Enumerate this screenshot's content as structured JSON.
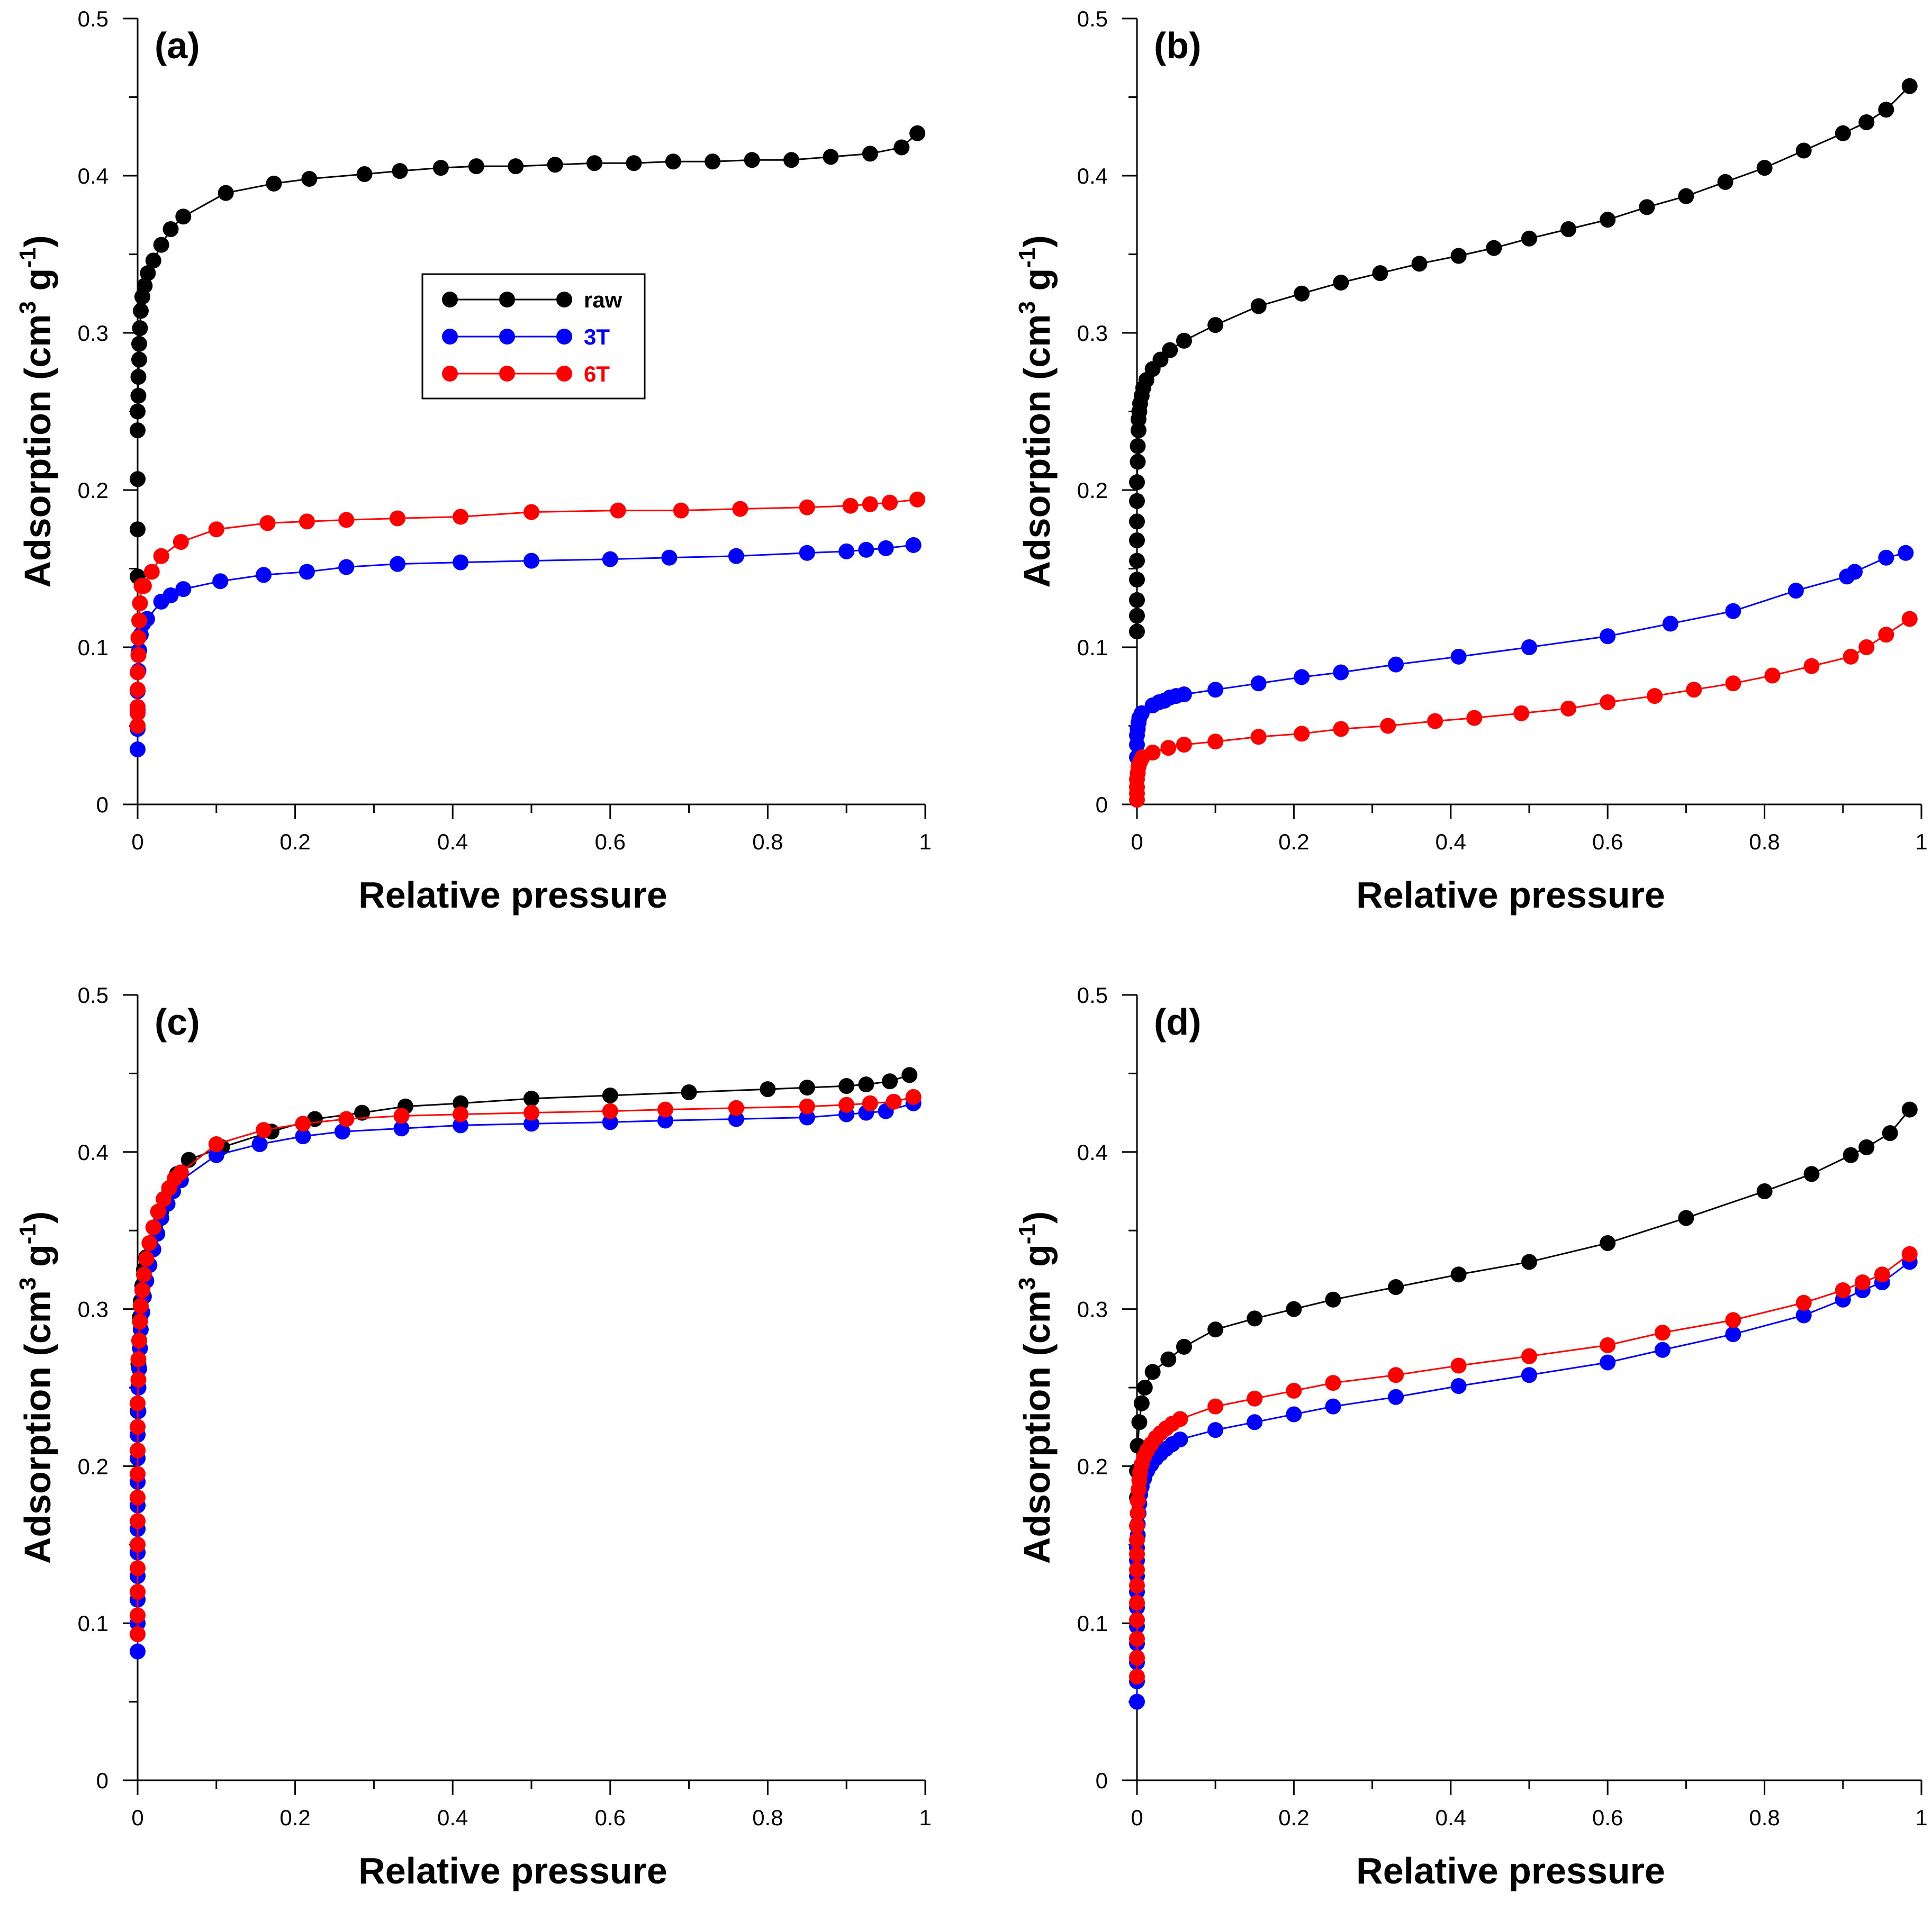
{
  "figure": {
    "panels_label": "Adsorption isotherms"
  },
  "chart_data": [
    {
      "type": "line",
      "panel_label": "(a)",
      "xlabel": "Relative pressure",
      "ylabel": "Adsorption (cm",
      "ylabel_sup1": "3",
      "ylabel_mid": " g",
      "ylabel_sup2": "-1",
      "ylabel_end": ")",
      "xlim": [
        0,
        1
      ],
      "ylim": [
        0,
        0.5
      ],
      "xticks": [
        "0",
        "0.2",
        "0.4",
        "0.6",
        "0.8",
        "1"
      ],
      "yticks": [
        "0",
        "0.1",
        "0.2",
        "0.3",
        "0.4",
        "0.5"
      ],
      "legend": {
        "position": "upper-center",
        "entries": [
          "raw",
          "3T",
          "6T"
        ]
      },
      "series": [
        {
          "name": "raw",
          "color": "#000000",
          "x": [
            0,
            0,
            0,
            0,
            0,
            0.001,
            0.001,
            0.002,
            0.002,
            0.003,
            0.004,
            0.006,
            0.009,
            0.013,
            0.02,
            0.03,
            0.042,
            0.058,
            0.112,
            0.173,
            0.218,
            0.288,
            0.333,
            0.385,
            0.43,
            0.48,
            0.53,
            0.58,
            0.63,
            0.68,
            0.73,
            0.78,
            0.83,
            0.88,
            0.93,
            0.97,
            0.99
          ],
          "y": [
            0.145,
            0.175,
            0.207,
            0.238,
            0.25,
            0.26,
            0.272,
            0.283,
            0.293,
            0.303,
            0.314,
            0.323,
            0.33,
            0.338,
            0.346,
            0.356,
            0.366,
            0.374,
            0.389,
            0.395,
            0.398,
            0.401,
            0.403,
            0.405,
            0.406,
            0.406,
            0.407,
            0.408,
            0.408,
            0.409,
            0.409,
            0.41,
            0.41,
            0.412,
            0.414,
            0.418,
            0.427
          ]
        },
        {
          "name": "3T",
          "color": "#0000ff",
          "x": [
            0,
            0,
            0,
            0,
            0.001,
            0.002,
            0.004,
            0.007,
            0.012,
            0.03,
            0.042,
            0.058,
            0.105,
            0.16,
            0.215,
            0.265,
            0.33,
            0.41,
            0.5,
            0.6,
            0.675,
            0.76,
            0.85,
            0.9,
            0.925,
            0.95,
            0.985
          ],
          "y": [
            0.035,
            0.048,
            0.06,
            0.072,
            0.085,
            0.098,
            0.108,
            0.115,
            0.118,
            0.129,
            0.133,
            0.137,
            0.142,
            0.146,
            0.148,
            0.151,
            0.153,
            0.154,
            0.155,
            0.156,
            0.157,
            0.158,
            0.16,
            0.161,
            0.162,
            0.163,
            0.165
          ]
        },
        {
          "name": "6T",
          "color": "#ff0000",
          "x": [
            0,
            0,
            0,
            0,
            0,
            0.001,
            0.001,
            0.002,
            0.003,
            0.005,
            0.008,
            0.018,
            0.03,
            0.055,
            0.1,
            0.165,
            0.215,
            0.265,
            0.33,
            0.41,
            0.5,
            0.61,
            0.69,
            0.765,
            0.85,
            0.905,
            0.93,
            0.955,
            0.99
          ],
          "y": [
            0.05,
            0.058,
            0.062,
            0.073,
            0.084,
            0.095,
            0.106,
            0.117,
            0.128,
            0.139,
            0.139,
            0.148,
            0.158,
            0.167,
            0.175,
            0.179,
            0.18,
            0.181,
            0.182,
            0.183,
            0.186,
            0.187,
            0.187,
            0.188,
            0.189,
            0.19,
            0.191,
            0.192,
            0.194
          ]
        }
      ]
    },
    {
      "type": "line",
      "panel_label": "(b)",
      "xlabel": "Relative pressure",
      "ylabel": "Adsorption (cm",
      "ylabel_sup1": "3",
      "ylabel_mid": " g",
      "ylabel_sup2": "-1",
      "ylabel_end": ")",
      "xlim": [
        0,
        1
      ],
      "ylim": [
        0,
        0.5
      ],
      "xticks": [
        "0",
        "0.2",
        "0.4",
        "0.6",
        "0.8",
        "1"
      ],
      "yticks": [
        "0",
        "0.1",
        "0.2",
        "0.3",
        "0.4",
        "0.5"
      ],
      "series": [
        {
          "name": "raw",
          "color": "#000000",
          "x": [
            0,
            0,
            0,
            0,
            0,
            0,
            0,
            0,
            0,
            0.001,
            0.001,
            0.002,
            0.002,
            0.003,
            0.004,
            0.006,
            0.008,
            0.012,
            0.02,
            0.03,
            0.042,
            0.06,
            0.1,
            0.155,
            0.21,
            0.26,
            0.31,
            0.36,
            0.41,
            0.455,
            0.5,
            0.55,
            0.6,
            0.65,
            0.7,
            0.75,
            0.8,
            0.85,
            0.9,
            0.93,
            0.955,
            0.985
          ],
          "y": [
            0.11,
            0.12,
            0.13,
            0.143,
            0.155,
            0.168,
            0.18,
            0.193,
            0.205,
            0.218,
            0.228,
            0.238,
            0.245,
            0.25,
            0.255,
            0.26,
            0.265,
            0.27,
            0.277,
            0.283,
            0.289,
            0.295,
            0.305,
            0.317,
            0.325,
            0.332,
            0.338,
            0.344,
            0.349,
            0.354,
            0.36,
            0.366,
            0.372,
            0.38,
            0.387,
            0.396,
            0.405,
            0.416,
            0.427,
            0.434,
            0.442,
            0.457
          ]
        },
        {
          "name": "3T",
          "color": "#0000ff",
          "x": [
            0,
            0,
            0,
            0.001,
            0.002,
            0.003,
            0.006,
            0.02,
            0.028,
            0.035,
            0.042,
            0.05,
            0.06,
            0.1,
            0.155,
            0.21,
            0.26,
            0.33,
            0.41,
            0.5,
            0.6,
            0.68,
            0.76,
            0.84,
            0.905,
            0.915,
            0.955,
            0.98
          ],
          "y": [
            0.03,
            0.038,
            0.044,
            0.048,
            0.052,
            0.055,
            0.058,
            0.063,
            0.065,
            0.066,
            0.068,
            0.069,
            0.07,
            0.073,
            0.077,
            0.081,
            0.084,
            0.089,
            0.094,
            0.1,
            0.107,
            0.115,
            0.123,
            0.136,
            0.145,
            0.148,
            0.157,
            0.16
          ]
        },
        {
          "name": "6T",
          "color": "#ff0000",
          "x": [
            0,
            0,
            0,
            0,
            0.001,
            0.002,
            0.004,
            0.007,
            0.02,
            0.04,
            0.06,
            0.1,
            0.155,
            0.21,
            0.26,
            0.32,
            0.38,
            0.43,
            0.49,
            0.55,
            0.6,
            0.66,
            0.71,
            0.76,
            0.81,
            0.86,
            0.91,
            0.93,
            0.955,
            0.985
          ],
          "y": [
            0.003,
            0.007,
            0.011,
            0.016,
            0.02,
            0.024,
            0.027,
            0.03,
            0.033,
            0.036,
            0.038,
            0.04,
            0.043,
            0.045,
            0.048,
            0.05,
            0.053,
            0.055,
            0.058,
            0.061,
            0.065,
            0.069,
            0.073,
            0.077,
            0.082,
            0.088,
            0.094,
            0.1,
            0.108,
            0.118
          ]
        }
      ]
    },
    {
      "type": "line",
      "panel_label": "(c)",
      "xlabel": "Relative pressure",
      "ylabel": "Adsorption (cm",
      "ylabel_sup1": "3",
      "ylabel_mid": " g",
      "ylabel_sup2": "-1",
      "ylabel_end": ")",
      "xlim": [
        0,
        1
      ],
      "ylim": [
        0,
        0.5
      ],
      "xticks": [
        "0",
        "0.2",
        "0.4",
        "0.6",
        "0.8",
        "1"
      ],
      "yticks": [
        "0",
        "0.1",
        "0.2",
        "0.3",
        "0.4",
        "0.5"
      ],
      "series": [
        {
          "name": "raw",
          "color": "#000000",
          "x": [
            0,
            0,
            0,
            0,
            0,
            0,
            0,
            0,
            0,
            0,
            0.001,
            0.001,
            0.002,
            0.003,
            0.004,
            0.006,
            0.008,
            0.011,
            0.016,
            0.022,
            0.03,
            0.04,
            0.05,
            0.065,
            0.107,
            0.17,
            0.225,
            0.285,
            0.34,
            0.41,
            0.5,
            0.6,
            0.7,
            0.8,
            0.85,
            0.9,
            0.925,
            0.955,
            0.98
          ],
          "y": [
            0.1,
            0.115,
            0.13,
            0.145,
            0.16,
            0.175,
            0.19,
            0.205,
            0.22,
            0.235,
            0.25,
            0.265,
            0.28,
            0.295,
            0.305,
            0.315,
            0.325,
            0.333,
            0.342,
            0.352,
            0.362,
            0.374,
            0.386,
            0.395,
            0.403,
            0.413,
            0.421,
            0.425,
            0.429,
            0.431,
            0.434,
            0.436,
            0.438,
            0.44,
            0.441,
            0.442,
            0.443,
            0.445,
            0.449
          ]
        },
        {
          "name": "3T",
          "color": "#0000ff",
          "x": [
            0,
            0,
            0,
            0,
            0,
            0,
            0,
            0,
            0,
            0,
            0.001,
            0.001,
            0.002,
            0.003,
            0.004,
            0.006,
            0.008,
            0.011,
            0.015,
            0.02,
            0.025,
            0.03,
            0.038,
            0.045,
            0.055,
            0.1,
            0.155,
            0.21,
            0.26,
            0.335,
            0.41,
            0.5,
            0.6,
            0.67,
            0.76,
            0.85,
            0.9,
            0.925,
            0.95,
            0.985
          ],
          "y": [
            0.082,
            0.1,
            0.115,
            0.13,
            0.145,
            0.16,
            0.175,
            0.19,
            0.205,
            0.22,
            0.235,
            0.25,
            0.262,
            0.275,
            0.287,
            0.298,
            0.308,
            0.318,
            0.328,
            0.338,
            0.348,
            0.358,
            0.367,
            0.375,
            0.382,
            0.398,
            0.405,
            0.41,
            0.413,
            0.415,
            0.417,
            0.418,
            0.419,
            0.42,
            0.421,
            0.422,
            0.424,
            0.425,
            0.426,
            0.431
          ]
        },
        {
          "name": "6T",
          "color": "#ff0000",
          "x": [
            0,
            0,
            0,
            0,
            0,
            0,
            0,
            0,
            0,
            0,
            0,
            0.001,
            0.001,
            0.002,
            0.003,
            0.004,
            0.006,
            0.008,
            0.011,
            0.015,
            0.02,
            0.026,
            0.033,
            0.04,
            0.047,
            0.055,
            0.1,
            0.16,
            0.21,
            0.265,
            0.335,
            0.41,
            0.5,
            0.6,
            0.67,
            0.76,
            0.85,
            0.9,
            0.93,
            0.96,
            0.985
          ],
          "y": [
            0.093,
            0.105,
            0.12,
            0.135,
            0.15,
            0.165,
            0.18,
            0.195,
            0.21,
            0.225,
            0.24,
            0.255,
            0.268,
            0.28,
            0.292,
            0.302,
            0.312,
            0.322,
            0.332,
            0.342,
            0.352,
            0.362,
            0.37,
            0.377,
            0.383,
            0.387,
            0.405,
            0.414,
            0.418,
            0.421,
            0.423,
            0.424,
            0.425,
            0.426,
            0.427,
            0.428,
            0.429,
            0.43,
            0.431,
            0.432,
            0.435
          ]
        }
      ]
    },
    {
      "type": "line",
      "panel_label": "(d)",
      "xlabel": "Relative pressure",
      "ylabel": "Adsorption (cm",
      "ylabel_sup1": "3",
      "ylabel_mid": " g",
      "ylabel_sup2": "-1",
      "ylabel_end": ")",
      "xlim": [
        0,
        1
      ],
      "ylim": [
        0,
        0.5
      ],
      "xticks": [
        "0",
        "0.2",
        "0.4",
        "0.6",
        "0.8",
        "1"
      ],
      "yticks": [
        "0",
        "0.1",
        "0.2",
        "0.3",
        "0.4",
        "0.5"
      ],
      "series": [
        {
          "name": "raw",
          "color": "#000000",
          "x": [
            0,
            0,
            0.001,
            0.003,
            0.006,
            0.01,
            0.02,
            0.04,
            0.06,
            0.1,
            0.15,
            0.2,
            0.25,
            0.33,
            0.41,
            0.5,
            0.6,
            0.7,
            0.8,
            0.86,
            0.91,
            0.93,
            0.96,
            0.985
          ],
          "y": [
            0.18,
            0.197,
            0.213,
            0.228,
            0.24,
            0.25,
            0.26,
            0.268,
            0.276,
            0.287,
            0.294,
            0.3,
            0.306,
            0.314,
            0.322,
            0.33,
            0.342,
            0.358,
            0.375,
            0.386,
            0.398,
            0.403,
            0.412,
            0.427
          ]
        },
        {
          "name": "3T",
          "color": "#0000ff",
          "x": [
            0,
            0,
            0,
            0,
            0,
            0,
            0,
            0,
            0,
            0,
            0.001,
            0.001,
            0.002,
            0.003,
            0.004,
            0.006,
            0.009,
            0.013,
            0.018,
            0.024,
            0.03,
            0.037,
            0.045,
            0.055,
            0.1,
            0.15,
            0.2,
            0.25,
            0.33,
            0.41,
            0.5,
            0.6,
            0.67,
            0.76,
            0.85,
            0.9,
            0.925,
            0.95,
            0.985
          ],
          "y": [
            0.05,
            0.063,
            0.075,
            0.087,
            0.098,
            0.11,
            0.12,
            0.13,
            0.14,
            0.148,
            0.156,
            0.163,
            0.17,
            0.176,
            0.182,
            0.187,
            0.192,
            0.197,
            0.201,
            0.205,
            0.208,
            0.211,
            0.214,
            0.217,
            0.223,
            0.228,
            0.233,
            0.238,
            0.244,
            0.251,
            0.258,
            0.266,
            0.274,
            0.284,
            0.296,
            0.306,
            0.312,
            0.317,
            0.33
          ]
        },
        {
          "name": "6T",
          "color": "#ff0000",
          "x": [
            0,
            0,
            0,
            0,
            0,
            0,
            0,
            0,
            0,
            0,
            0.001,
            0.001,
            0.002,
            0.003,
            0.004,
            0.006,
            0.009,
            0.013,
            0.018,
            0.024,
            0.03,
            0.037,
            0.045,
            0.055,
            0.1,
            0.15,
            0.2,
            0.25,
            0.33,
            0.41,
            0.5,
            0.6,
            0.67,
            0.76,
            0.85,
            0.9,
            0.925,
            0.95,
            0.985
          ],
          "y": [
            0.066,
            0.078,
            0.09,
            0.102,
            0.113,
            0.124,
            0.134,
            0.144,
            0.153,
            0.162,
            0.17,
            0.178,
            0.185,
            0.191,
            0.196,
            0.201,
            0.206,
            0.21,
            0.214,
            0.218,
            0.221,
            0.224,
            0.227,
            0.23,
            0.238,
            0.243,
            0.248,
            0.253,
            0.258,
            0.264,
            0.27,
            0.277,
            0.285,
            0.293,
            0.304,
            0.312,
            0.317,
            0.322,
            0.335
          ]
        }
      ]
    }
  ]
}
